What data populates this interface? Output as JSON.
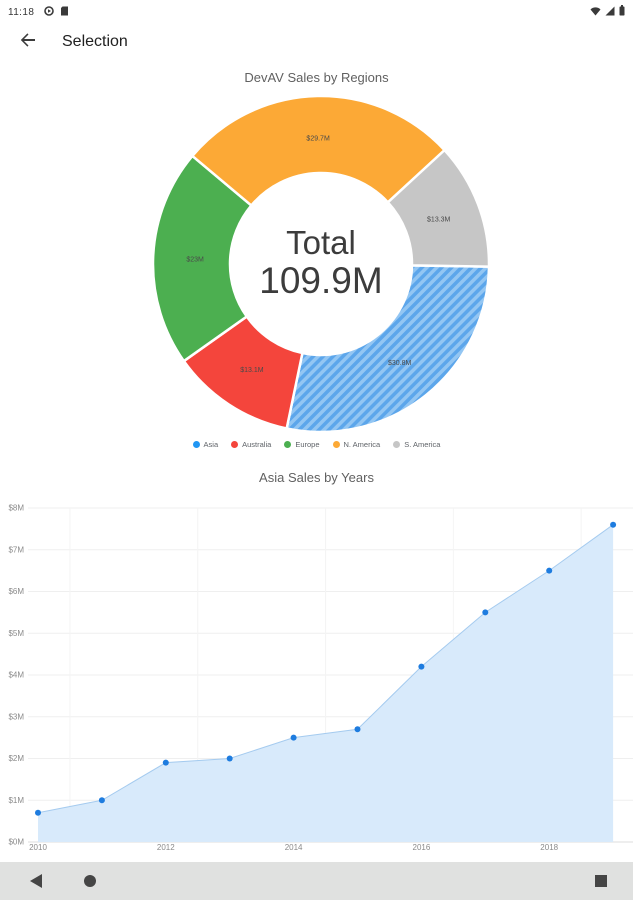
{
  "status_bar": {
    "time": "11:18",
    "left_icons": [
      {
        "name": "play-protect-icon"
      },
      {
        "name": "sd-card-icon"
      }
    ],
    "right_icons": [
      {
        "name": "wifi-icon"
      },
      {
        "name": "cellular-signal-icon"
      },
      {
        "name": "battery-icon"
      }
    ]
  },
  "app_bar": {
    "back_icon": "back-arrow-icon",
    "title": "Selection"
  },
  "donut_section": {
    "title": "DevAV Sales by Regions",
    "center_title": "Total",
    "center_value": "109.9M"
  },
  "area_section": {
    "title": "Asia Sales by Years"
  },
  "nav_bar": {
    "icons": [
      {
        "name": "android-back-icon"
      },
      {
        "name": "android-home-icon"
      },
      {
        "name": "android-recents-icon"
      }
    ]
  },
  "chart_data": [
    {
      "type": "pie",
      "subtype": "doughnut",
      "title": "DevAV Sales by Regions",
      "total_label": "Total",
      "total_value": 109.9,
      "start_angle_deg": 90.9,
      "legend_position": "bottom",
      "series": [
        {
          "name": "Asia",
          "value": 30.8,
          "label": "$30.8M",
          "color": "#5CA6EB",
          "hatch": true,
          "hatch_color": "#93C6F3",
          "legend_color": "#2196F3",
          "selected": true
        },
        {
          "name": "Australia",
          "value": 13.1,
          "label": "$13.1M",
          "color": "#F4453C",
          "legend_color": "#F4453C"
        },
        {
          "name": "Europe",
          "value": 23.0,
          "label": "$23M",
          "color": "#4CAF50",
          "legend_color": "#4CAF50"
        },
        {
          "name": "N. America",
          "value": 29.7,
          "label": "$29.7M",
          "color": "#FCA936",
          "legend_color": "#FCA936"
        },
        {
          "name": "S. America",
          "value": 13.3,
          "label": "$13.3M",
          "color": "#C6C6C6",
          "legend_color": "#C6C6C6"
        }
      ]
    },
    {
      "type": "area",
      "title": "Asia Sales by Years",
      "x": [
        2010,
        2011,
        2012,
        2013,
        2014,
        2015,
        2016,
        2017,
        2018,
        2019
      ],
      "values": [
        0.7,
        1.0,
        1.9,
        2.0,
        2.5,
        2.7,
        4.2,
        5.5,
        6.5,
        7.6
      ],
      "x_tick_labels": [
        "2010",
        "2012",
        "2014",
        "2016",
        "2018"
      ],
      "y_tick_labels": [
        "$0M",
        "$1M",
        "$2M",
        "$3M",
        "$4M",
        "$5M",
        "$6M",
        "$7M",
        "$8M"
      ],
      "ylim": [
        0,
        8
      ],
      "grid": true,
      "fill_color": "#D8EAFB",
      "line_color": "#A5CBEF",
      "point_color": "#1E7CDF",
      "axis_line_color": "#DCDCDC",
      "grid_color": "#EFEFEF"
    }
  ]
}
